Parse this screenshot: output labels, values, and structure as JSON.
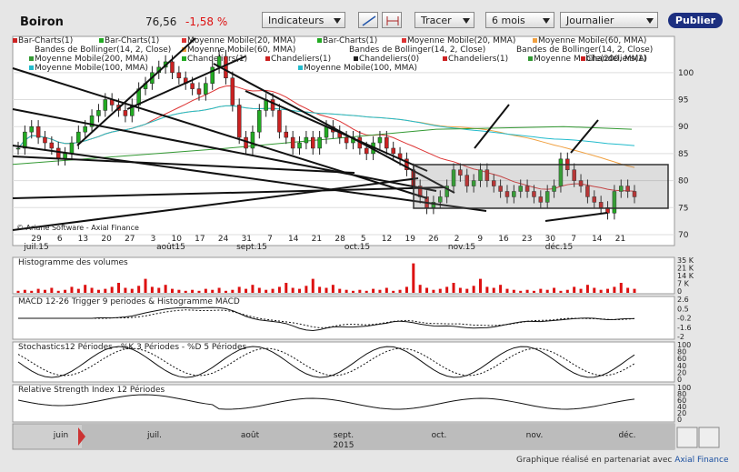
{
  "header": {
    "symbol": "Boiron",
    "last": "76,56",
    "change": "-1,58 %",
    "indicators_label": "Indicateurs",
    "draw_label": "Tracer",
    "period_label": "6 mois",
    "freq_label": "Journalier",
    "publish_label": "Publier"
  },
  "legend": [
    {
      "text": "Bar-Charts(1)",
      "color": "#cc2222"
    },
    {
      "text": "Bar-Charts(1)",
      "color": "#22aa22"
    },
    {
      "text": "Moyenne Mobile(20, MMA)",
      "color": "#dd3333"
    },
    {
      "text": "Bar-Charts(1)",
      "color": "#22aa22"
    },
    {
      "text": "Moyenne Mobile(20, MMA)",
      "color": "#dd3333"
    },
    {
      "text": "Moyenne Mobile(60, MMA)",
      "color": "#f0a040"
    },
    {
      "text": "Bandes de Bollinger(14, 2, Close)",
      "color": ""
    },
    {
      "text": "Moyenne Mobile(60, MMA)",
      "color": "#f0a040"
    },
    {
      "text": "Bandes de Bollinger(14, 2, Close)",
      "color": ""
    },
    {
      "text": "Bandes de Bollinger(14, 2, Close)",
      "color": ""
    },
    {
      "text": "Moyenne Mobile(200, MMA)",
      "color": "#339933"
    },
    {
      "text": "Chandeliers(1)",
      "color": "#22aa22"
    },
    {
      "text": "Chandeliers(1)",
      "color": "#cc2222"
    },
    {
      "text": "Chandeliers(0)",
      "color": "#222222"
    },
    {
      "text": "Chandeliers(1)",
      "color": "#cc2222"
    },
    {
      "text": "Moyenne Mobile(200, MMA)",
      "color": "#339933"
    },
    {
      "text": "Chandeliers(1)",
      "color": "#cc2222"
    },
    {
      "text": "Moyenne Mobile(100, MMA)",
      "color": "#22bbcc"
    },
    {
      "text": "Moyenne Mobile(100, MMA)",
      "color": "#22bbcc"
    }
  ],
  "watermark": "© Ariane Software - Axial Finance",
  "chart_data": [
    {
      "type": "candlestick",
      "y_ticks": [
        "100",
        "95",
        "90",
        "85",
        "80",
        "75",
        "70"
      ],
      "ylim": [
        70,
        103
      ],
      "x_ticks": [
        "29",
        "6",
        "13",
        "20",
        "27",
        "3",
        "10",
        "17",
        "24",
        "31",
        "7",
        "14",
        "21",
        "28",
        "5",
        "12",
        "19",
        "26",
        "2",
        "9",
        "16",
        "23",
        "30",
        "7",
        "14",
        "21"
      ],
      "month_labels": [
        "juil.15",
        "août15",
        "sept.15",
        "oct.15",
        "nov.15",
        "déc.15"
      ],
      "close": [
        86,
        89,
        90,
        88,
        87,
        86,
        84,
        85,
        87,
        89,
        90,
        92,
        93,
        95,
        94,
        93,
        92,
        94,
        97,
        98,
        100,
        101,
        102,
        100,
        99,
        98,
        97,
        96,
        98,
        101,
        103,
        99,
        94,
        88,
        86,
        89,
        93,
        95,
        93,
        89,
        88,
        86,
        87,
        88,
        86,
        88,
        90,
        89,
        88,
        87,
        88,
        86,
        85,
        87,
        88,
        86,
        85,
        84,
        82,
        79,
        77,
        75,
        76,
        77,
        79,
        82,
        81,
        79,
        80,
        82,
        80,
        79,
        78,
        77,
        78,
        79,
        78,
        77,
        76,
        78,
        79,
        84,
        82,
        80,
        79,
        77,
        76,
        75,
        74,
        78,
        79,
        78,
        77
      ]
    },
    {
      "type": "bar",
      "title": "Histogramme des volumes",
      "y_ticks": [
        "35 K",
        "21 K",
        "14 K",
        "7 K",
        "0"
      ]
    },
    {
      "type": "line",
      "title": "MACD 12-26   Trigger 9 periodes & Histogramme MACD",
      "y_ticks": [
        "2.6",
        "0.5",
        "-0.2",
        "-1.6",
        "-2"
      ]
    },
    {
      "type": "line",
      "title": "Stochastics12 Périodes  - %K 3 Périodes  - %D 5 Périodes",
      "y_ticks": [
        "100",
        "80",
        "60",
        "40",
        "20",
        "0"
      ]
    },
    {
      "type": "line",
      "title": "Relative Strength Index 12 Périodes",
      "y_ticks": [
        "100",
        "80",
        "60",
        "40",
        "20",
        "0"
      ]
    }
  ],
  "navigator": {
    "months": [
      "juin",
      "juil.",
      "août",
      "sept.",
      "oct.",
      "nov.",
      "déc."
    ],
    "year": "2015"
  },
  "credit": {
    "prefix": "Graphique réalisé en partenariat avec ",
    "brand": "Axial Finance"
  }
}
